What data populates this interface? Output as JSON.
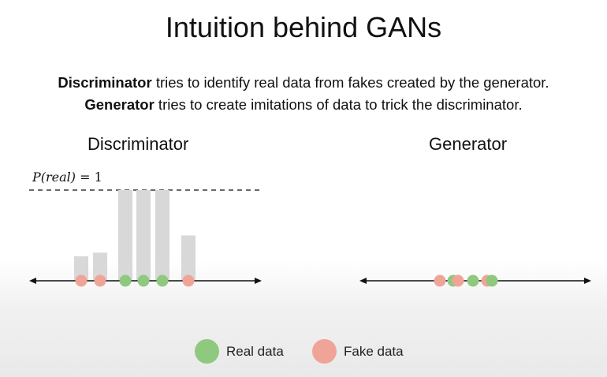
{
  "title": "Intuition behind GANs",
  "description": {
    "line1_bold": "Discriminator",
    "line1_rest": " tries to identify real data from fakes created by the generator.",
    "line2_bold": "Generator",
    "line2_rest": " tries to create imitations of data to trick the discriminator."
  },
  "panels": {
    "discriminator": "Discriminator",
    "generator": "Generator"
  },
  "threshold_label": {
    "prefix": "P(real) ",
    "eq": "= 1"
  },
  "discriminator_points": [
    {
      "kind": "fake",
      "bar": 0.27
    },
    {
      "kind": "fake",
      "bar": 0.31
    },
    {
      "kind": "real",
      "bar": 1.0
    },
    {
      "kind": "real",
      "bar": 1.0
    },
    {
      "kind": "real",
      "bar": 1.0
    },
    {
      "kind": "fake",
      "bar": 0.5
    }
  ],
  "generator_points": [
    {
      "kind": "fake"
    },
    {
      "kind": "real"
    },
    {
      "kind": "fake"
    },
    {
      "kind": "real"
    },
    {
      "kind": "fake"
    },
    {
      "kind": "real"
    }
  ],
  "legend": {
    "real_label": "Real data",
    "fake_label": "Fake data"
  },
  "colors": {
    "real": "#8fc97f",
    "fake": "#f0a497",
    "bar": "#d8d8d8",
    "axis": "#111111"
  }
}
